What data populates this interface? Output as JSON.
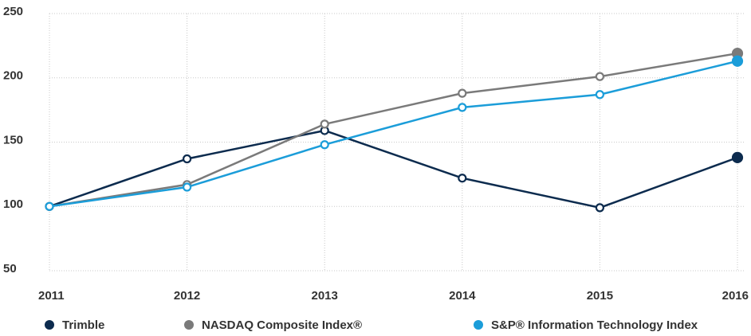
{
  "chart_data": {
    "type": "line",
    "categories": [
      "2011",
      "2012",
      "2013",
      "2014",
      "2015",
      "2016"
    ],
    "series": [
      {
        "name": "Trimble",
        "color": "#0c2b4e",
        "values": [
          100,
          137,
          159,
          122,
          99,
          138
        ]
      },
      {
        "name": "NASDAQ Composite Index®",
        "color": "#7a7a7a",
        "values": [
          100,
          117,
          164,
          188,
          201,
          219
        ]
      },
      {
        "name": "S&P® Information Technology Index",
        "color": "#1b9dd9",
        "values": [
          100,
          115,
          148,
          177,
          187,
          213
        ]
      }
    ],
    "ylim": [
      50,
      250
    ],
    "yticks": [
      50,
      100,
      150,
      200,
      250
    ],
    "grid": true,
    "legend": "bottom"
  }
}
